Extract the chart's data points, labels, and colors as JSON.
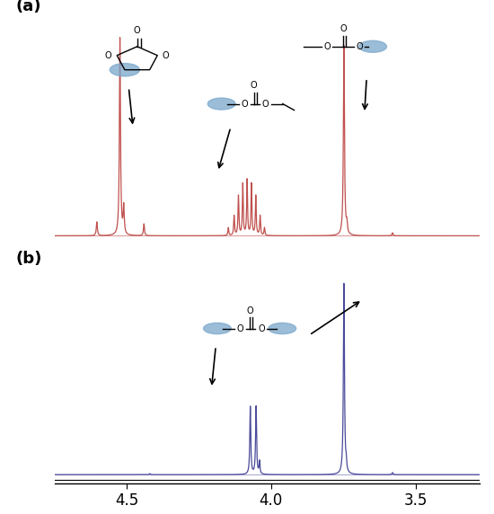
{
  "xlim": [
    4.75,
    3.28
  ],
  "xticks": [
    4.5,
    4.0,
    3.5
  ],
  "xtick_labels": [
    "4.5",
    "4.0",
    "3.5"
  ],
  "panel_a_color": "#c0504d",
  "panel_b_color": "#4a4a9a",
  "background_color": "#ffffff",
  "label_a": "(a)",
  "label_b": "(b)",
  "blue_color": "#7aa7cc"
}
